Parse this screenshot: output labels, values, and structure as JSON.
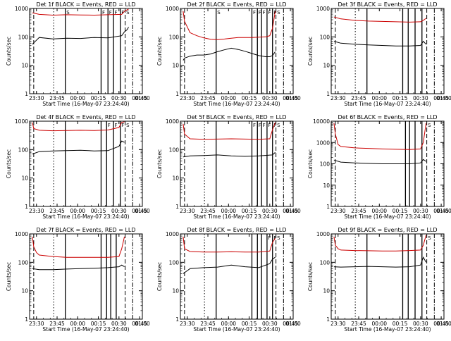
{
  "figure": {
    "background": "#ffffff",
    "events_color": "#000000",
    "lld_color": "#cc0000",
    "start_time_label": "Start Time (16-May-07 23:24:40)",
    "y_axis_label": "Counts/sec"
  },
  "chart_data": [
    {
      "type": "line",
      "title": "Det 1f BLACK = Events, RED = LLD",
      "xlabel": "Start Time (16-May-07 23:24:40)",
      "ylabel": "Counts/sec",
      "x_ticks": [
        "23:30",
        "23:45",
        "00:00",
        "00:15",
        "00:30",
        "00:45",
        "01:00"
      ],
      "y_ticks": [
        "1",
        "10",
        "100",
        "1000"
      ],
      "x_range_minutes": [
        23.0,
        105.0
      ],
      "ylim": [
        1,
        1000
      ],
      "y_scale": "log",
      "series": [
        {
          "name": "Events",
          "color": "#000000",
          "x": [
            25,
            30,
            40,
            50,
            60,
            70,
            80,
            90,
            92,
            94,
            95
          ],
          "y": [
            55,
            95,
            85,
            90,
            88,
            95,
            92,
            110,
            150,
            180,
            220
          ]
        },
        {
          "name": "LLD",
          "color": "#cc0000",
          "x": [
            25,
            30,
            40,
            50,
            60,
            70,
            80,
            90,
            92,
            94,
            95
          ],
          "y": [
            700,
            620,
            580,
            600,
            590,
            580,
            600,
            620,
            800,
            900,
            950
          ]
        }
      ],
      "markers": {
        "solid": [
          49,
          75,
          80,
          84,
          89
        ],
        "dashed": [
          26,
          92.5
        ],
        "dotted": [
          40.5
        ],
        "dashdot": [
          98
        ]
      },
      "annotations": [
        "S",
        "F",
        "F",
        "F",
        "F",
        "S"
      ]
    },
    {
      "type": "line",
      "title": "Det 2f BLACK = Events, RED = LLD",
      "xlabel": "Start Time (16-May-07 23:24:40)",
      "ylabel": "Counts/sec",
      "x_ticks": [
        "23:30",
        "23:45",
        "00:00",
        "00:15",
        "00:30",
        "00:45",
        "01:00"
      ],
      "y_ticks": [
        "1",
        "10",
        "100",
        "1000"
      ],
      "x_range_minutes": [
        23.0,
        105.0
      ],
      "ylim": [
        1,
        1000
      ],
      "y_scale": "log",
      "series": [
        {
          "name": "Events",
          "color": "#000000",
          "x": [
            25,
            26,
            30,
            35,
            40,
            45,
            50,
            55,
            60,
            65,
            70,
            75,
            80,
            85,
            88,
            90,
            92
          ],
          "y": [
            15,
            18,
            21,
            23,
            23,
            25,
            30,
            35,
            40,
            36,
            31,
            26,
            22,
            20,
            20,
            22,
            30
          ]
        },
        {
          "name": "LLD",
          "color": "#cc0000",
          "x": [
            25,
            26,
            30,
            35,
            40,
            45,
            50,
            55,
            60,
            65,
            70,
            75,
            80,
            85,
            88,
            90,
            92
          ],
          "y": [
            800,
            350,
            140,
            110,
            92,
            82,
            80,
            84,
            90,
            95,
            95,
            95,
            98,
            100,
            110,
            200,
            800
          ]
        }
      ],
      "markers": {
        "solid": [
          49,
          75,
          79,
          82,
          86,
          90
        ],
        "dashed": [
          26,
          92.5
        ],
        "dotted": [
          40.5
        ],
        "dashdot": [
          98
        ]
      },
      "annotations": [
        "S",
        "F",
        "F",
        "F",
        "F",
        "F",
        "S"
      ]
    },
    {
      "type": "line",
      "title": "Det 3f BLACK = Events, RED = LLD",
      "xlabel": "Start Time (16-May-07 23:24:40)",
      "ylabel": "Counts/sec",
      "x_ticks": [
        "23:30",
        "23:45",
        "00:00",
        "00:15",
        "00:30",
        "00:45",
        "01:00"
      ],
      "y_ticks": [
        "1",
        "10",
        "100",
        "1000"
      ],
      "x_range_minutes": [
        23.0,
        105.0
      ],
      "ylim": [
        1,
        1000
      ],
      "y_scale": "log",
      "series": [
        {
          "name": "Events",
          "color": "#000000",
          "x": [
            25,
            30,
            40,
            50,
            60,
            70,
            80,
            88,
            90,
            92
          ],
          "y": [
            70,
            60,
            55,
            52,
            50,
            48,
            48,
            50,
            70,
            55
          ]
        },
        {
          "name": "LLD",
          "color": "#cc0000",
          "x": [
            25,
            30,
            40,
            50,
            60,
            70,
            80,
            88,
            90,
            92
          ],
          "y": [
            500,
            430,
            380,
            360,
            350,
            340,
            330,
            340,
            380,
            450
          ]
        }
      ],
      "markers": {
        "solid": [
          49,
          75,
          79,
          84,
          89
        ],
        "dashed": [
          26,
          92.5
        ],
        "dotted": [
          40.5
        ],
        "dashdot": [
          98
        ]
      },
      "annotations": []
    },
    {
      "type": "line",
      "title": "Det 4f BLACK = Events, RED = LLD",
      "xlabel": "Start Time (16-May-07 23:24:40)",
      "ylabel": "Counts/sec",
      "x_ticks": [
        "23:30",
        "23:45",
        "00:00",
        "00:15",
        "00:30",
        "00:45",
        "01:00"
      ],
      "y_ticks": [
        "1",
        "10",
        "100",
        "1000"
      ],
      "x_range_minutes": [
        23.0,
        105.0
      ],
      "ylim": [
        1,
        1000
      ],
      "y_scale": "log",
      "series": [
        {
          "name": "Events",
          "color": "#000000",
          "x": [
            25,
            30,
            40,
            50,
            60,
            70,
            80,
            88,
            90,
            92
          ],
          "y": [
            70,
            85,
            90,
            92,
            95,
            90,
            92,
            130,
            200,
            180
          ]
        },
        {
          "name": "LLD",
          "color": "#cc0000",
          "x": [
            25,
            26,
            30,
            40,
            50,
            60,
            70,
            80,
            88,
            90,
            92
          ],
          "y": [
            900,
            550,
            480,
            460,
            470,
            480,
            470,
            490,
            600,
            900,
            950
          ]
        }
      ],
      "markers": {
        "solid": [
          49,
          75,
          79,
          84,
          89
        ],
        "dashed": [
          26,
          92.5
        ],
        "dotted": [
          40.5
        ],
        "dashdot": [
          98
        ]
      },
      "annotations": [
        "F",
        "F",
        "F",
        "S"
      ]
    },
    {
      "type": "line",
      "title": "Det 5f BLACK = Events, RED = LLD",
      "xlabel": "Start Time (16-May-07 23:24:40)",
      "ylabel": "Counts/sec",
      "x_ticks": [
        "23:30",
        "23:45",
        "00:00",
        "00:15",
        "00:30",
        "00:45",
        "01:00"
      ],
      "y_ticks": [
        "1",
        "10",
        "100",
        "1000"
      ],
      "x_range_minutes": [
        23.0,
        105.0
      ],
      "ylim": [
        1,
        1000
      ],
      "y_scale": "log",
      "series": [
        {
          "name": "Events",
          "color": "#000000",
          "x": [
            25,
            30,
            40,
            50,
            60,
            70,
            80,
            90,
            92
          ],
          "y": [
            55,
            60,
            62,
            65,
            60,
            58,
            60,
            65,
            80
          ]
        },
        {
          "name": "LLD",
          "color": "#cc0000",
          "x": [
            25,
            26,
            30,
            40,
            50,
            60,
            70,
            80,
            88,
            90,
            92
          ],
          "y": [
            800,
            350,
            240,
            230,
            235,
            240,
            235,
            230,
            240,
            500,
            900
          ]
        }
      ],
      "markers": {
        "solid": [
          49,
          75,
          79,
          82,
          86,
          90
        ],
        "dashed": [
          26,
          92.5
        ],
        "dotted": [
          40.5
        ],
        "dashdot": [
          98
        ]
      },
      "annotations": [
        "F",
        "F",
        "F",
        "F",
        "F",
        "S"
      ]
    },
    {
      "type": "line",
      "title": "Det 6f BLACK = Events, RED = LLD",
      "xlabel": "Start Time (16-May-07 23:24:40)",
      "ylabel": "Counts/sec",
      "x_ticks": [
        "23:30",
        "23:45",
        "00:00",
        "00:15",
        "00:30",
        "00:45",
        "01:00"
      ],
      "y_ticks": [
        "1",
        "10",
        "100",
        "1000",
        "10000"
      ],
      "x_range_minutes": [
        23.0,
        105.0
      ],
      "ylim": [
        1,
        10000
      ],
      "y_scale": "log",
      "series": [
        {
          "name": "Events",
          "color": "#000000",
          "x": [
            25,
            30,
            40,
            50,
            60,
            70,
            80,
            88,
            90,
            92
          ],
          "y": [
            150,
            120,
            110,
            105,
            100,
            100,
            100,
            110,
            160,
            130
          ]
        },
        {
          "name": "LLD",
          "color": "#cc0000",
          "x": [
            25,
            26,
            28,
            30,
            40,
            50,
            60,
            70,
            80,
            88,
            90,
            92
          ],
          "y": [
            8000,
            2500,
            800,
            650,
            560,
            530,
            500,
            480,
            470,
            500,
            1000,
            8000
          ]
        }
      ],
      "markers": {
        "solid": [
          77,
          80,
          84,
          89
        ],
        "dashed": [
          26,
          92.5
        ],
        "dotted": [
          40.5
        ],
        "dashdot": [
          98
        ]
      },
      "annotations": [
        "S"
      ]
    },
    {
      "type": "line",
      "title": "Det 7f BLACK = Events, RED = LLD",
      "xlabel": "Start Time (16-May-07 23:24:40)",
      "ylabel": "Counts/sec",
      "x_ticks": [
        "23:30",
        "23:45",
        "00:00",
        "00:15",
        "00:30",
        "00:45",
        "01:00"
      ],
      "y_ticks": [
        "1",
        "10",
        "100",
        "1000"
      ],
      "x_range_minutes": [
        23.0,
        105.0
      ],
      "ylim": [
        1,
        1000
      ],
      "y_scale": "log",
      "series": [
        {
          "name": "Events",
          "color": "#000000",
          "x": [
            25,
            30,
            40,
            50,
            60,
            70,
            80,
            88,
            90,
            92
          ],
          "y": [
            60,
            55,
            55,
            58,
            60,
            62,
            65,
            70,
            80,
            70
          ]
        },
        {
          "name": "LLD",
          "color": "#cc0000",
          "x": [
            25,
            26,
            28,
            30,
            40,
            50,
            60,
            70,
            80,
            88,
            90,
            92
          ],
          "y": [
            800,
            350,
            220,
            180,
            160,
            150,
            150,
            150,
            150,
            160,
            300,
            800
          ]
        }
      ],
      "markers": {
        "solid": [
          49,
          75,
          79,
          82,
          86
        ],
        "dashed": [
          26,
          92.5
        ],
        "dotted": [
          40.5
        ],
        "dashdot": [
          98
        ]
      },
      "annotations": []
    },
    {
      "type": "line",
      "title": "Det 8f BLACK = Events, RED = LLD",
      "xlabel": "Start Time (16-May-07 23:24:40)",
      "ylabel": "Counts/sec",
      "x_ticks": [
        "23:30",
        "23:45",
        "00:00",
        "00:15",
        "00:30",
        "00:45",
        "01:00"
      ],
      "y_ticks": [
        "1",
        "10",
        "100",
        "1000"
      ],
      "x_range_minutes": [
        23.0,
        105.0
      ],
      "ylim": [
        1,
        1000
      ],
      "y_scale": "log",
      "series": [
        {
          "name": "Events",
          "color": "#000000",
          "x": [
            25,
            30,
            40,
            50,
            60,
            70,
            80,
            88,
            90,
            92
          ],
          "y": [
            40,
            60,
            65,
            68,
            80,
            70,
            65,
            90,
            130,
            150
          ]
        },
        {
          "name": "LLD",
          "color": "#cc0000",
          "x": [
            25,
            26,
            30,
            40,
            50,
            60,
            70,
            80,
            88,
            90,
            92
          ],
          "y": [
            800,
            300,
            240,
            230,
            230,
            235,
            230,
            230,
            250,
            500,
            700
          ]
        }
      ],
      "markers": {
        "solid": [
          49,
          75,
          79,
          82,
          86,
          90
        ],
        "dashed": [
          26,
          92.5
        ],
        "dotted": [
          40.5
        ],
        "dashdot": [
          98
        ]
      },
      "annotations": [
        "F",
        "F",
        "S"
      ]
    },
    {
      "type": "line",
      "title": "Det 9f BLACK = Events, RED = LLD",
      "xlabel": "Start Time (16-May-07 23:24:40)",
      "ylabel": "Counts/sec",
      "x_ticks": [
        "23:30",
        "23:45",
        "00:00",
        "00:15",
        "00:30",
        "00:45",
        "01:00"
      ],
      "y_ticks": [
        "1",
        "10",
        "100",
        "1000"
      ],
      "x_range_minutes": [
        23.0,
        105.0
      ],
      "ylim": [
        1,
        1000
      ],
      "y_scale": "log",
      "series": [
        {
          "name": "Events",
          "color": "#000000",
          "x": [
            25,
            30,
            40,
            50,
            60,
            70,
            80,
            88,
            90,
            92
          ],
          "y": [
            70,
            68,
            70,
            72,
            70,
            68,
            70,
            80,
            150,
            100
          ]
        },
        {
          "name": "LLD",
          "color": "#cc0000",
          "x": [
            25,
            26,
            28,
            30,
            40,
            50,
            60,
            70,
            80,
            88,
            90,
            92
          ],
          "y": [
            800,
            400,
            300,
            270,
            260,
            255,
            250,
            250,
            260,
            270,
            400,
            900
          ]
        }
      ],
      "markers": {
        "solid": [
          49,
          75,
          79,
          84,
          89
        ],
        "dashed": [
          26,
          92.5
        ],
        "dotted": [
          40.5
        ],
        "dashdot": [
          98
        ]
      },
      "annotations": [
        "S"
      ]
    }
  ]
}
